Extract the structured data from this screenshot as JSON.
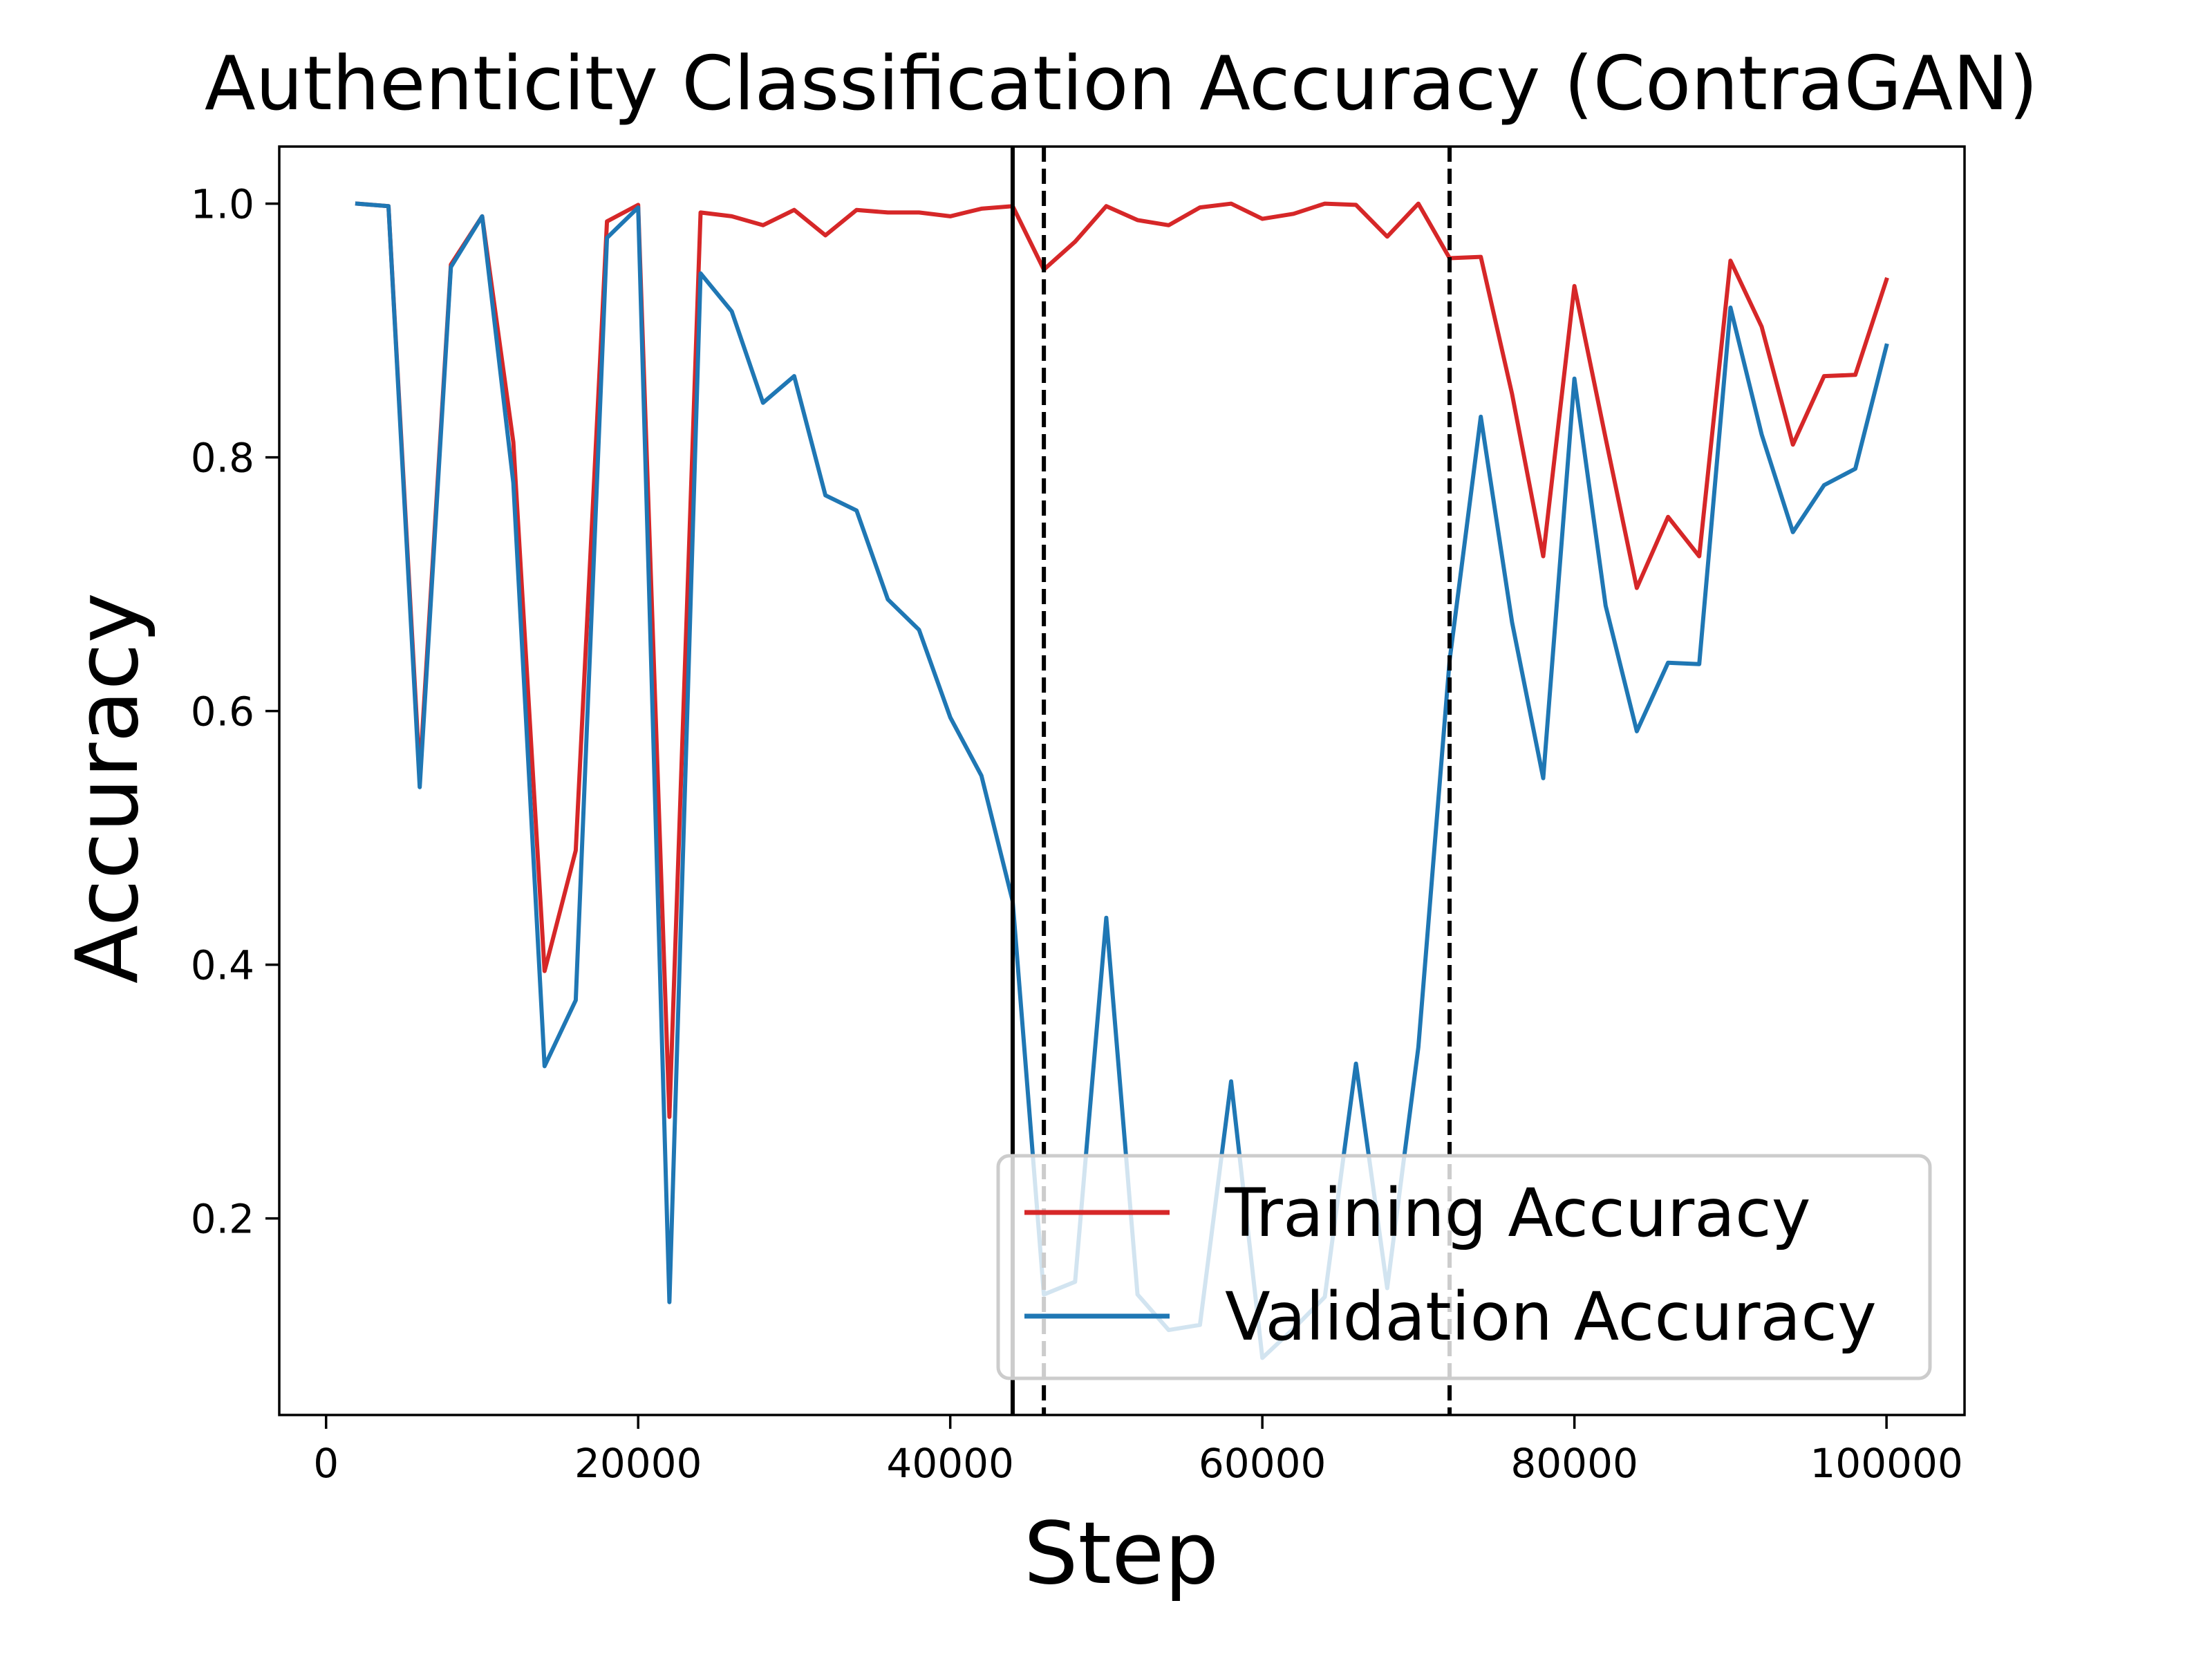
{
  "chart_data": {
    "type": "line",
    "title": "Authenticity Classification Accuracy (ContraGAN)",
    "xlabel": "Step",
    "ylabel": "Accuracy",
    "xlim": [
      -3000,
      105000
    ],
    "ylim": [
      0.045,
      1.045
    ],
    "xticks": [
      0,
      20000,
      40000,
      60000,
      80000,
      100000
    ],
    "xtick_labels": [
      "0",
      "20000",
      "40000",
      "60000",
      "80000",
      "100000"
    ],
    "yticks": [
      0.2,
      0.4,
      0.6,
      0.8,
      1.0
    ],
    "ytick_labels": [
      "0.2",
      "0.4",
      "0.6",
      "0.8",
      "1.0"
    ],
    "grid": false,
    "legend_position": "bottom-right",
    "x": [
      2000,
      4000,
      6000,
      8000,
      10000,
      12000,
      14000,
      16000,
      18000,
      20000,
      22000,
      24000,
      26000,
      28000,
      30000,
      32000,
      34000,
      36000,
      38000,
      40000,
      42000,
      44000,
      46000,
      48000,
      50000,
      52000,
      54000,
      56000,
      58000,
      60000,
      62000,
      64000,
      66000,
      68000,
      70000,
      72000,
      74000,
      76000,
      78000,
      80000,
      82000,
      84000,
      86000,
      88000,
      90000,
      92000,
      94000,
      96000,
      98000,
      100000
    ],
    "series": [
      {
        "name": "Training Accuracy",
        "color": "#d62728",
        "values": [
          1.0,
          0.998,
          0.55,
          0.952,
          0.99,
          0.812,
          0.395,
          0.49,
          0.986,
          0.999,
          0.28,
          0.993,
          0.99,
          0.983,
          0.995,
          0.975,
          0.995,
          0.993,
          0.993,
          0.99,
          0.996,
          0.998,
          0.948,
          0.97,
          0.998,
          0.987,
          0.983,
          0.997,
          1.0,
          0.988,
          0.992,
          1.0,
          0.999,
          0.974,
          1.0,
          0.957,
          0.958,
          0.85,
          0.722,
          0.935,
          0.815,
          0.697,
          0.753,
          0.722,
          0.955,
          0.903,
          0.81,
          0.864,
          0.865,
          0.94
        ]
      },
      {
        "name": "Validation Accuracy",
        "color": "#1f77b4",
        "values": [
          1.0,
          0.998,
          0.54,
          0.95,
          0.99,
          0.78,
          0.32,
          0.372,
          0.973,
          0.997,
          0.134,
          0.945,
          0.915,
          0.843,
          0.864,
          0.77,
          0.758,
          0.688,
          0.664,
          0.595,
          0.549,
          0.45,
          0.14,
          0.15,
          0.437,
          0.14,
          0.112,
          0.116,
          0.308,
          0.09,
          0.113,
          0.138,
          0.322,
          0.145,
          0.335,
          0.64,
          0.832,
          0.67,
          0.547,
          0.862,
          0.683,
          0.584,
          0.638,
          0.637,
          0.918,
          0.818,
          0.741,
          0.778,
          0.791,
          0.888
        ]
      }
    ],
    "vlines": [
      {
        "x": 44000,
        "style": "solid",
        "color": "#000000"
      },
      {
        "x": 46000,
        "style": "dashed",
        "color": "#000000"
      },
      {
        "x": 72000,
        "style": "dashed",
        "color": "#000000"
      }
    ]
  }
}
